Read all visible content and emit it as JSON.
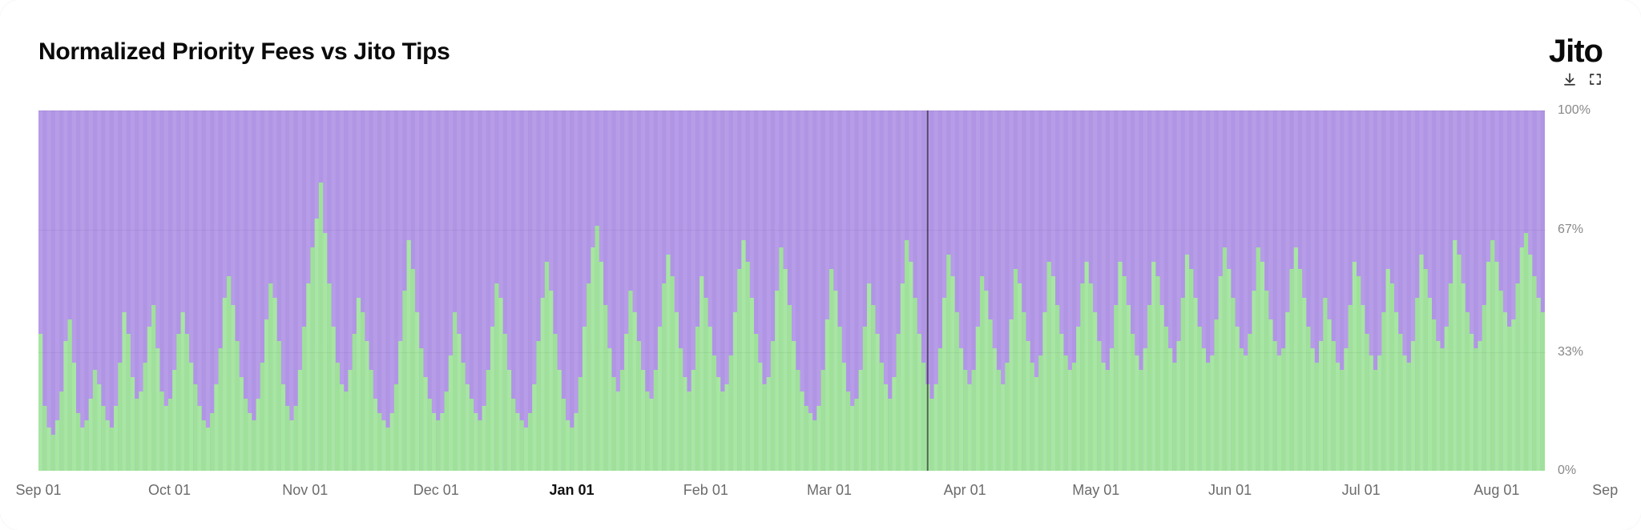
{
  "title": "Normalized Priority Fees vs Jito Tips",
  "logo": {
    "text": "Jito"
  },
  "chart": {
    "type": "stacked-bar-100pct",
    "background_color": "#ffffff",
    "grid_color": "rgba(0,0,0,0.05)",
    "series": {
      "bottom": {
        "name": "Jito Tips",
        "color": "#a8e6a3",
        "color_alt": "#9fe19a"
      },
      "top": {
        "name": "Priority Fees",
        "color": "#b79ce8",
        "color_alt": "#b095e4"
      }
    },
    "y_axis": {
      "unit": "%",
      "ticks": [
        0,
        33,
        67,
        100
      ],
      "tick_labels": [
        "0%",
        "33%",
        "67%",
        "100%"
      ],
      "label_fontsize": 16,
      "label_color": "#888888"
    },
    "x_axis": {
      "ticks": [
        {
          "label": "Sep 01",
          "pos_pct": 0,
          "bold": false
        },
        {
          "label": "Oct 01",
          "pos_pct": 8.7,
          "bold": false
        },
        {
          "label": "Nov 01",
          "pos_pct": 17.7,
          "bold": false
        },
        {
          "label": "Dec 01",
          "pos_pct": 26.4,
          "bold": false
        },
        {
          "label": "Jan 01",
          "pos_pct": 35.4,
          "bold": true
        },
        {
          "label": "Feb 01",
          "pos_pct": 44.3,
          "bold": false
        },
        {
          "label": "Mar 01",
          "pos_pct": 52.5,
          "bold": false
        },
        {
          "label": "Apr 01",
          "pos_pct": 61.5,
          "bold": false
        },
        {
          "label": "May 01",
          "pos_pct": 70.2,
          "bold": false
        },
        {
          "label": "Jun 01",
          "pos_pct": 79.1,
          "bold": false
        },
        {
          "label": "Jul 01",
          "pos_pct": 87.8,
          "bold": false
        },
        {
          "label": "Aug 01",
          "pos_pct": 96.8,
          "bold": false
        },
        {
          "label": "Sep",
          "pos_pct": 104.0,
          "bold": false
        }
      ],
      "label_fontsize": 18,
      "label_color": "#6b6b6b"
    },
    "bottom_series_values_pct": [
      38,
      18,
      12,
      10,
      14,
      22,
      36,
      42,
      30,
      16,
      12,
      14,
      20,
      28,
      24,
      18,
      14,
      12,
      18,
      30,
      44,
      38,
      26,
      20,
      22,
      30,
      40,
      46,
      34,
      22,
      18,
      20,
      28,
      38,
      44,
      38,
      30,
      24,
      18,
      14,
      12,
      16,
      24,
      34,
      48,
      54,
      46,
      36,
      26,
      20,
      16,
      14,
      20,
      30,
      42,
      52,
      48,
      36,
      24,
      18,
      14,
      18,
      28,
      40,
      52,
      62,
      70,
      80,
      66,
      52,
      40,
      30,
      24,
      22,
      28,
      38,
      48,
      44,
      36,
      28,
      20,
      16,
      14,
      12,
      16,
      24,
      36,
      50,
      64,
      56,
      44,
      34,
      26,
      20,
      16,
      14,
      16,
      22,
      32,
      44,
      38,
      30,
      24,
      20,
      16,
      14,
      18,
      28,
      40,
      52,
      48,
      38,
      28,
      20,
      16,
      14,
      12,
      16,
      24,
      36,
      48,
      58,
      50,
      38,
      28,
      20,
      14,
      12,
      16,
      26,
      40,
      52,
      62,
      68,
      58,
      46,
      34,
      26,
      22,
      28,
      38,
      50,
      44,
      36,
      28,
      22,
      20,
      28,
      40,
      52,
      60,
      54,
      44,
      34,
      26,
      22,
      28,
      40,
      54,
      48,
      40,
      32,
      26,
      22,
      24,
      32,
      44,
      56,
      64,
      58,
      48,
      38,
      30,
      24,
      26,
      36,
      50,
      62,
      56,
      46,
      36,
      28,
      22,
      18,
      16,
      14,
      18,
      28,
      42,
      56,
      50,
      40,
      30,
      22,
      18,
      20,
      28,
      40,
      52,
      46,
      38,
      30,
      24,
      20,
      26,
      38,
      52,
      64,
      58,
      48,
      38,
      30,
      24,
      20,
      24,
      34,
      48,
      60,
      54,
      44,
      34,
      28,
      24,
      28,
      40,
      54,
      50,
      42,
      34,
      28,
      24,
      30,
      42,
      56,
      52,
      44,
      36,
      30,
      26,
      32,
      44,
      58,
      54,
      46,
      38,
      32,
      28,
      30,
      40,
      52,
      58,
      52,
      44,
      36,
      30,
      28,
      34,
      46,
      58,
      54,
      46,
      38,
      32,
      28,
      34,
      46,
      58,
      54,
      46,
      40,
      34,
      30,
      36,
      48,
      60,
      56,
      48,
      40,
      34,
      30,
      32,
      42,
      54,
      62,
      56,
      48,
      40,
      34,
      32,
      38,
      50,
      62,
      58,
      50,
      42,
      36,
      32,
      34,
      44,
      56,
      62,
      56,
      48,
      40,
      34,
      30,
      36,
      48,
      42,
      36,
      30,
      28,
      34,
      46,
      58,
      54,
      46,
      38,
      32,
      28,
      32,
      44,
      56,
      52,
      44,
      38,
      32,
      30,
      36,
      48,
      60,
      56,
      48,
      42,
      36,
      34,
      40,
      52,
      64,
      60,
      52,
      44,
      38,
      34,
      36,
      46,
      58,
      64,
      58,
      50,
      44,
      40,
      42,
      52,
      62,
      66,
      60,
      54,
      48,
      44
    ],
    "highlight_bar_index": 212,
    "highlight_color": "rgba(0,0,0,0.55)"
  }
}
